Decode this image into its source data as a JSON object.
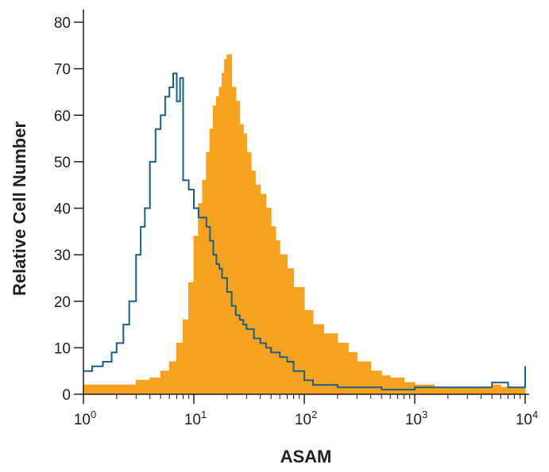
{
  "chart_data": {
    "type": "area",
    "title": "",
    "xlabel": "ASAM",
    "ylabel": "Relative Cell Number",
    "xscale": "log",
    "xlim": [
      1,
      10000
    ],
    "ylim": [
      0,
      80
    ],
    "x_ticks": [
      {
        "base": "10",
        "exp": "0"
      },
      {
        "base": "10",
        "exp": "1"
      },
      {
        "base": "10",
        "exp": "2"
      },
      {
        "base": "10",
        "exp": "3"
      },
      {
        "base": "10",
        "exp": "4"
      }
    ],
    "y_ticks": [
      "0",
      "10",
      "20",
      "30",
      "40",
      "50",
      "60",
      "70",
      "80"
    ],
    "grid": false,
    "colors": {
      "filled": "#f5a31e",
      "outline": "#1c5e8b",
      "axis": "#231f20"
    },
    "series": [
      {
        "style": "filled",
        "x": [
          1,
          1.5,
          2,
          3,
          4,
          5,
          6,
          7,
          8,
          9,
          10,
          11,
          12,
          13,
          14,
          15,
          16,
          17,
          18,
          19,
          20,
          22,
          24,
          26,
          28,
          30,
          33,
          36,
          40,
          45,
          50,
          55,
          60,
          70,
          80,
          100,
          120,
          150,
          200,
          250,
          300,
          400,
          500,
          600,
          800,
          1000,
          1500,
          2000,
          3000,
          4000,
          5000,
          6000,
          8000,
          10000
        ],
        "y": [
          2,
          2,
          2,
          3,
          3.5,
          5,
          7,
          11,
          16,
          24,
          34,
          41,
          46,
          52,
          57,
          62,
          64,
          66,
          69,
          72,
          73,
          66,
          63,
          58,
          56,
          52,
          48,
          45,
          43,
          40,
          36,
          33,
          30,
          27,
          23,
          18,
          15,
          13,
          11,
          9,
          7,
          5,
          4,
          3.5,
          2.5,
          2,
          1.5,
          1.5,
          1.5,
          1.5,
          2,
          1.5,
          1.5,
          1
        ]
      },
      {
        "style": "outline",
        "x": [
          1,
          1.2,
          1.5,
          1.8,
          2,
          2.3,
          2.6,
          3,
          3.3,
          3.6,
          4,
          4.5,
          5,
          5.5,
          6,
          6.5,
          7,
          7.5,
          8,
          9,
          10,
          11,
          12,
          13,
          14,
          15,
          16,
          17,
          18,
          20,
          22,
          24,
          26,
          28,
          30,
          35,
          40,
          45,
          50,
          60,
          70,
          80,
          100,
          120,
          150,
          200,
          300,
          500,
          1000,
          2000,
          3000,
          5000,
          7000,
          9000,
          10000
        ],
        "y": [
          5,
          6,
          7,
          9,
          11,
          15,
          20,
          30,
          36,
          40,
          50,
          57,
          60,
          64,
          66,
          69,
          63,
          68,
          46,
          44,
          40,
          38,
          38,
          36,
          33,
          30,
          28,
          27,
          25,
          22,
          19,
          17,
          16,
          15,
          14,
          12,
          11,
          10,
          9,
          8,
          7,
          5,
          3,
          2,
          2,
          1.5,
          1.5,
          1,
          1.5,
          1.5,
          1.5,
          2.5,
          1.5,
          1.5,
          6
        ]
      }
    ]
  }
}
